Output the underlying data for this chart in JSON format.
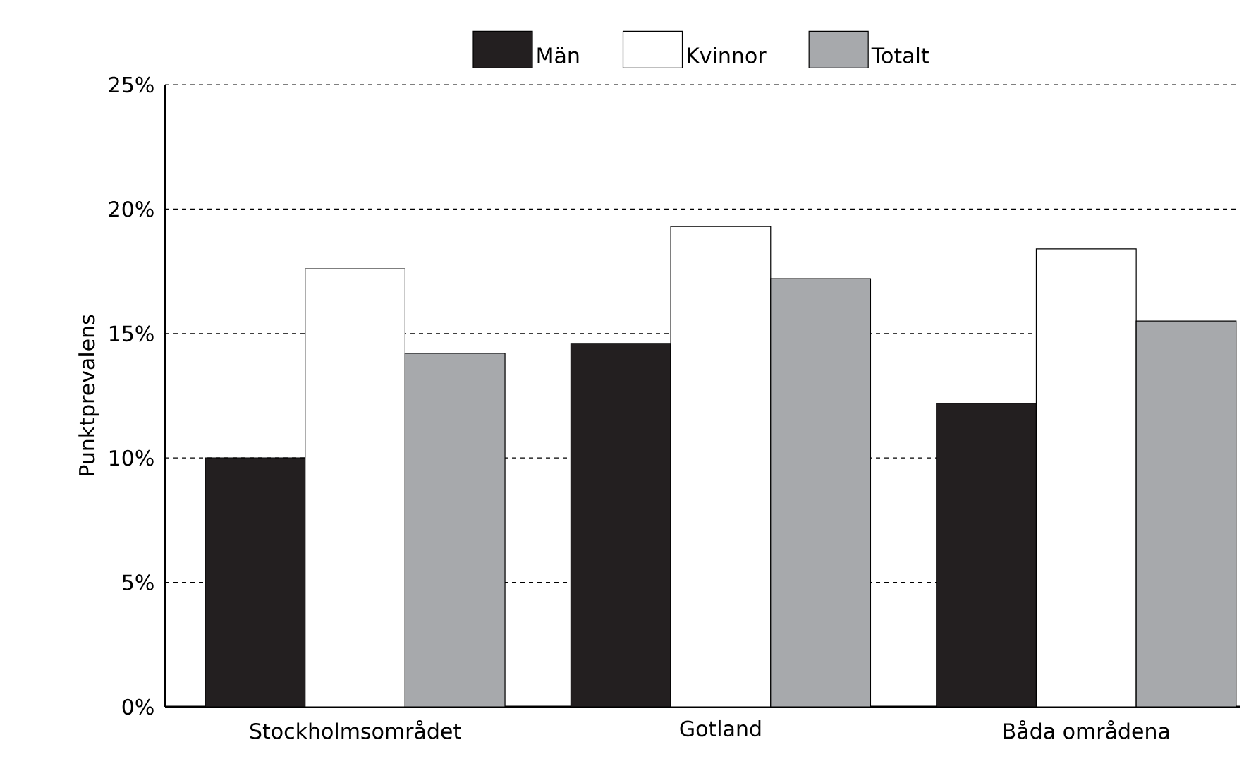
{
  "chart_data": {
    "type": "bar",
    "ylabel": "Punktprevalens",
    "categories": [
      "Stockholmsområdet",
      "Gotland",
      "Båda områdena"
    ],
    "series": [
      {
        "name": "Män",
        "color": "#231f20",
        "values": [
          10.0,
          14.6,
          12.2
        ]
      },
      {
        "name": "Kvinnor",
        "color": "#ffffff",
        "values": [
          17.6,
          19.3,
          18.4
        ]
      },
      {
        "name": "Totalt",
        "color": "#a7a9ac",
        "values": [
          14.2,
          17.2,
          15.5
        ]
      }
    ],
    "ylim": [
      0,
      25
    ],
    "yticks": [
      {
        "value": 0,
        "label": "0%"
      },
      {
        "value": 5,
        "label": "5%"
      },
      {
        "value": 10,
        "label": "10%"
      },
      {
        "value": 15,
        "label": "15%"
      },
      {
        "value": 20,
        "label": "20%"
      },
      {
        "value": 25,
        "label": "25%"
      }
    ],
    "grid": "y",
    "legend": "top"
  }
}
